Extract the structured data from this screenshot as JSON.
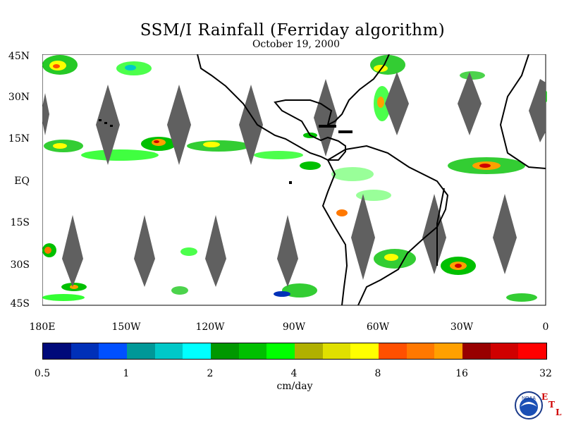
{
  "title": "SSM/I Rainfall (Ferriday algorithm)",
  "date": "October 19, 2000",
  "lat_labels": [
    "45N",
    "30N",
    "15N",
    "EQ",
    "15S",
    "30S",
    "45S"
  ],
  "lon_labels": [
    "180E",
    "150W",
    "120W",
    "90W",
    "60W",
    "30W",
    "0"
  ],
  "colorbar": {
    "tick_labels": [
      "0.5",
      "1",
      "2",
      "4",
      "8",
      "16",
      "32"
    ],
    "units": "cm/day",
    "colors": [
      "#000a7a",
      "#0030b8",
      "#0050ff",
      "#009898",
      "#00c8c8",
      "#00ffff",
      "#009800",
      "#00c000",
      "#00ff00",
      "#b0b000",
      "#e0e000",
      "#ffff00",
      "#ff5000",
      "#ff7800",
      "#ffa000",
      "#980000",
      "#d00000",
      "#ff0000"
    ]
  },
  "logo": {
    "text": "NOAA",
    "etl": [
      "E",
      "T",
      "L"
    ]
  },
  "colors": {
    "coastline": "#000000",
    "no_data": "#606060"
  }
}
